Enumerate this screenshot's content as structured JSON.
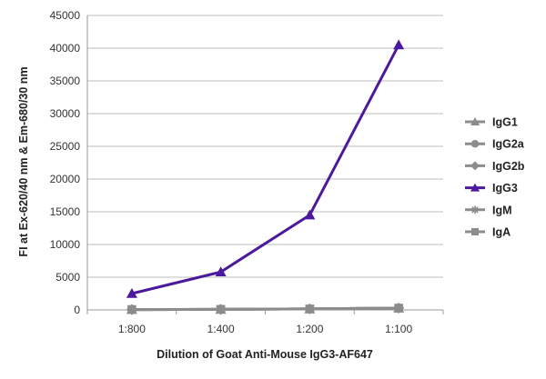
{
  "chart_data": {
    "type": "line",
    "xlabel": "Dilution of Goat Anti-Mouse IgG3-AF647",
    "ylabel": "FI at Ex-620/40 nm & Em-680/30 nm",
    "categories": [
      "1:800",
      "1:400",
      "1:200",
      "1:100"
    ],
    "ylim": [
      0,
      45000
    ],
    "yticks": [
      0,
      5000,
      10000,
      15000,
      20000,
      25000,
      30000,
      35000,
      40000,
      45000
    ],
    "grid": true,
    "legend_position": "right",
    "series": [
      {
        "name": "IgG1",
        "values": [
          60,
          90,
          150,
          280
        ],
        "color": "#8c8c8c",
        "marker": "triangle"
      },
      {
        "name": "IgG2a",
        "values": [
          60,
          90,
          150,
          280
        ],
        "color": "#8c8c8c",
        "marker": "circle"
      },
      {
        "name": "IgG2b",
        "values": [
          60,
          90,
          150,
          280
        ],
        "color": "#8c8c8c",
        "marker": "diamond"
      },
      {
        "name": "IgG3",
        "values": [
          2500,
          5800,
          14500,
          40500
        ],
        "color": "#4b1a9c",
        "marker": "triangle"
      },
      {
        "name": "IgM",
        "values": [
          60,
          90,
          150,
          280
        ],
        "color": "#8c8c8c",
        "marker": "star"
      },
      {
        "name": "IgA",
        "values": [
          60,
          90,
          150,
          280
        ],
        "color": "#8c8c8c",
        "marker": "square"
      }
    ]
  }
}
